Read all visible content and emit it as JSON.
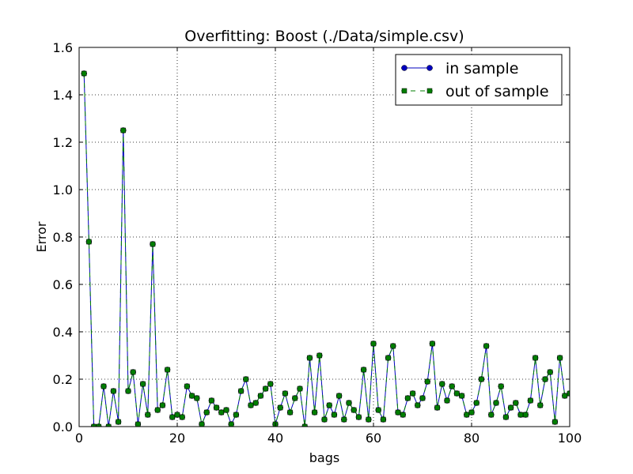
{
  "chart_data": {
    "type": "line",
    "title": "Overfitting: Boost (./Data/simple.csv)",
    "xlabel": "bags",
    "ylabel": "Error",
    "xlim": [
      0,
      100
    ],
    "ylim": [
      0,
      1.6
    ],
    "xticks": [
      0,
      20,
      40,
      60,
      80,
      100
    ],
    "xtick_labels": [
      "0",
      "20",
      "40",
      "60",
      "80",
      "100"
    ],
    "yticks": [
      0.0,
      0.2,
      0.4,
      0.6,
      0.8,
      1.0,
      1.2,
      1.4,
      1.6
    ],
    "ytick_labels": [
      "0.0",
      "0.2",
      "0.4",
      "0.6",
      "0.8",
      "1.0",
      "1.2",
      "1.4",
      "1.6"
    ],
    "grid": true,
    "legend_position": "top-right",
    "x": [
      1,
      2,
      3,
      4,
      5,
      6,
      7,
      8,
      9,
      10,
      11,
      12,
      13,
      14,
      15,
      16,
      17,
      18,
      19,
      20,
      21,
      22,
      23,
      24,
      25,
      26,
      27,
      28,
      29,
      30,
      31,
      32,
      33,
      34,
      35,
      36,
      37,
      38,
      39,
      40,
      41,
      42,
      43,
      44,
      45,
      46,
      47,
      48,
      49,
      50,
      51,
      52,
      53,
      54,
      55,
      56,
      57,
      58,
      59,
      60,
      61,
      62,
      63,
      64,
      65,
      66,
      67,
      68,
      69,
      70,
      71,
      72,
      73,
      74,
      75,
      76,
      77,
      78,
      79,
      80,
      81,
      82,
      83,
      84,
      85,
      86,
      87,
      88,
      89,
      90,
      91,
      92,
      93,
      94,
      95,
      96,
      97,
      98,
      99,
      100
    ],
    "series": [
      {
        "name": "in sample",
        "color": "#0000bf",
        "marker": "circle",
        "linestyle": "solid",
        "values": [
          1.49,
          0.78,
          0.0,
          0.0,
          0.17,
          0.0,
          0.15,
          0.02,
          1.25,
          0.15,
          0.23,
          0.01,
          0.18,
          0.05,
          0.77,
          0.07,
          0.09,
          0.24,
          0.04,
          0.05,
          0.04,
          0.17,
          0.13,
          0.12,
          0.01,
          0.06,
          0.11,
          0.08,
          0.06,
          0.07,
          0.01,
          0.05,
          0.15,
          0.2,
          0.09,
          0.1,
          0.13,
          0.16,
          0.18,
          0.01,
          0.08,
          0.14,
          0.06,
          0.12,
          0.16,
          0.0,
          0.29,
          0.06,
          0.3,
          0.03,
          0.09,
          0.05,
          0.13,
          0.03,
          0.1,
          0.07,
          0.04,
          0.24,
          0.03,
          0.35,
          0.07,
          0.03,
          0.29,
          0.34,
          0.06,
          0.05,
          0.12,
          0.14,
          0.09,
          0.12,
          0.19,
          0.35,
          0.08,
          0.18,
          0.11,
          0.17,
          0.14,
          0.13,
          0.05,
          0.06,
          0.1,
          0.2,
          0.34,
          0.05,
          0.1,
          0.17,
          0.04,
          0.08,
          0.1,
          0.05,
          0.05,
          0.11,
          0.29,
          0.09,
          0.2,
          0.23,
          0.02,
          0.29,
          0.13,
          0.14
        ]
      },
      {
        "name": "out of sample",
        "color": "#007f00",
        "marker": "square",
        "linestyle": "dashed",
        "values": [
          1.49,
          0.78,
          0.0,
          0.0,
          0.17,
          0.0,
          0.15,
          0.02,
          1.25,
          0.15,
          0.23,
          0.01,
          0.18,
          0.05,
          0.77,
          0.07,
          0.09,
          0.24,
          0.04,
          0.05,
          0.04,
          0.17,
          0.13,
          0.12,
          0.01,
          0.06,
          0.11,
          0.08,
          0.06,
          0.07,
          0.01,
          0.05,
          0.15,
          0.2,
          0.09,
          0.1,
          0.13,
          0.16,
          0.18,
          0.01,
          0.08,
          0.14,
          0.06,
          0.12,
          0.16,
          0.0,
          0.29,
          0.06,
          0.3,
          0.03,
          0.09,
          0.05,
          0.13,
          0.03,
          0.1,
          0.07,
          0.04,
          0.24,
          0.03,
          0.35,
          0.07,
          0.03,
          0.29,
          0.34,
          0.06,
          0.05,
          0.12,
          0.14,
          0.09,
          0.12,
          0.19,
          0.35,
          0.08,
          0.18,
          0.11,
          0.17,
          0.14,
          0.13,
          0.05,
          0.06,
          0.1,
          0.2,
          0.34,
          0.05,
          0.1,
          0.17,
          0.04,
          0.08,
          0.1,
          0.05,
          0.05,
          0.11,
          0.29,
          0.09,
          0.2,
          0.23,
          0.02,
          0.29,
          0.13,
          0.14
        ]
      }
    ]
  }
}
